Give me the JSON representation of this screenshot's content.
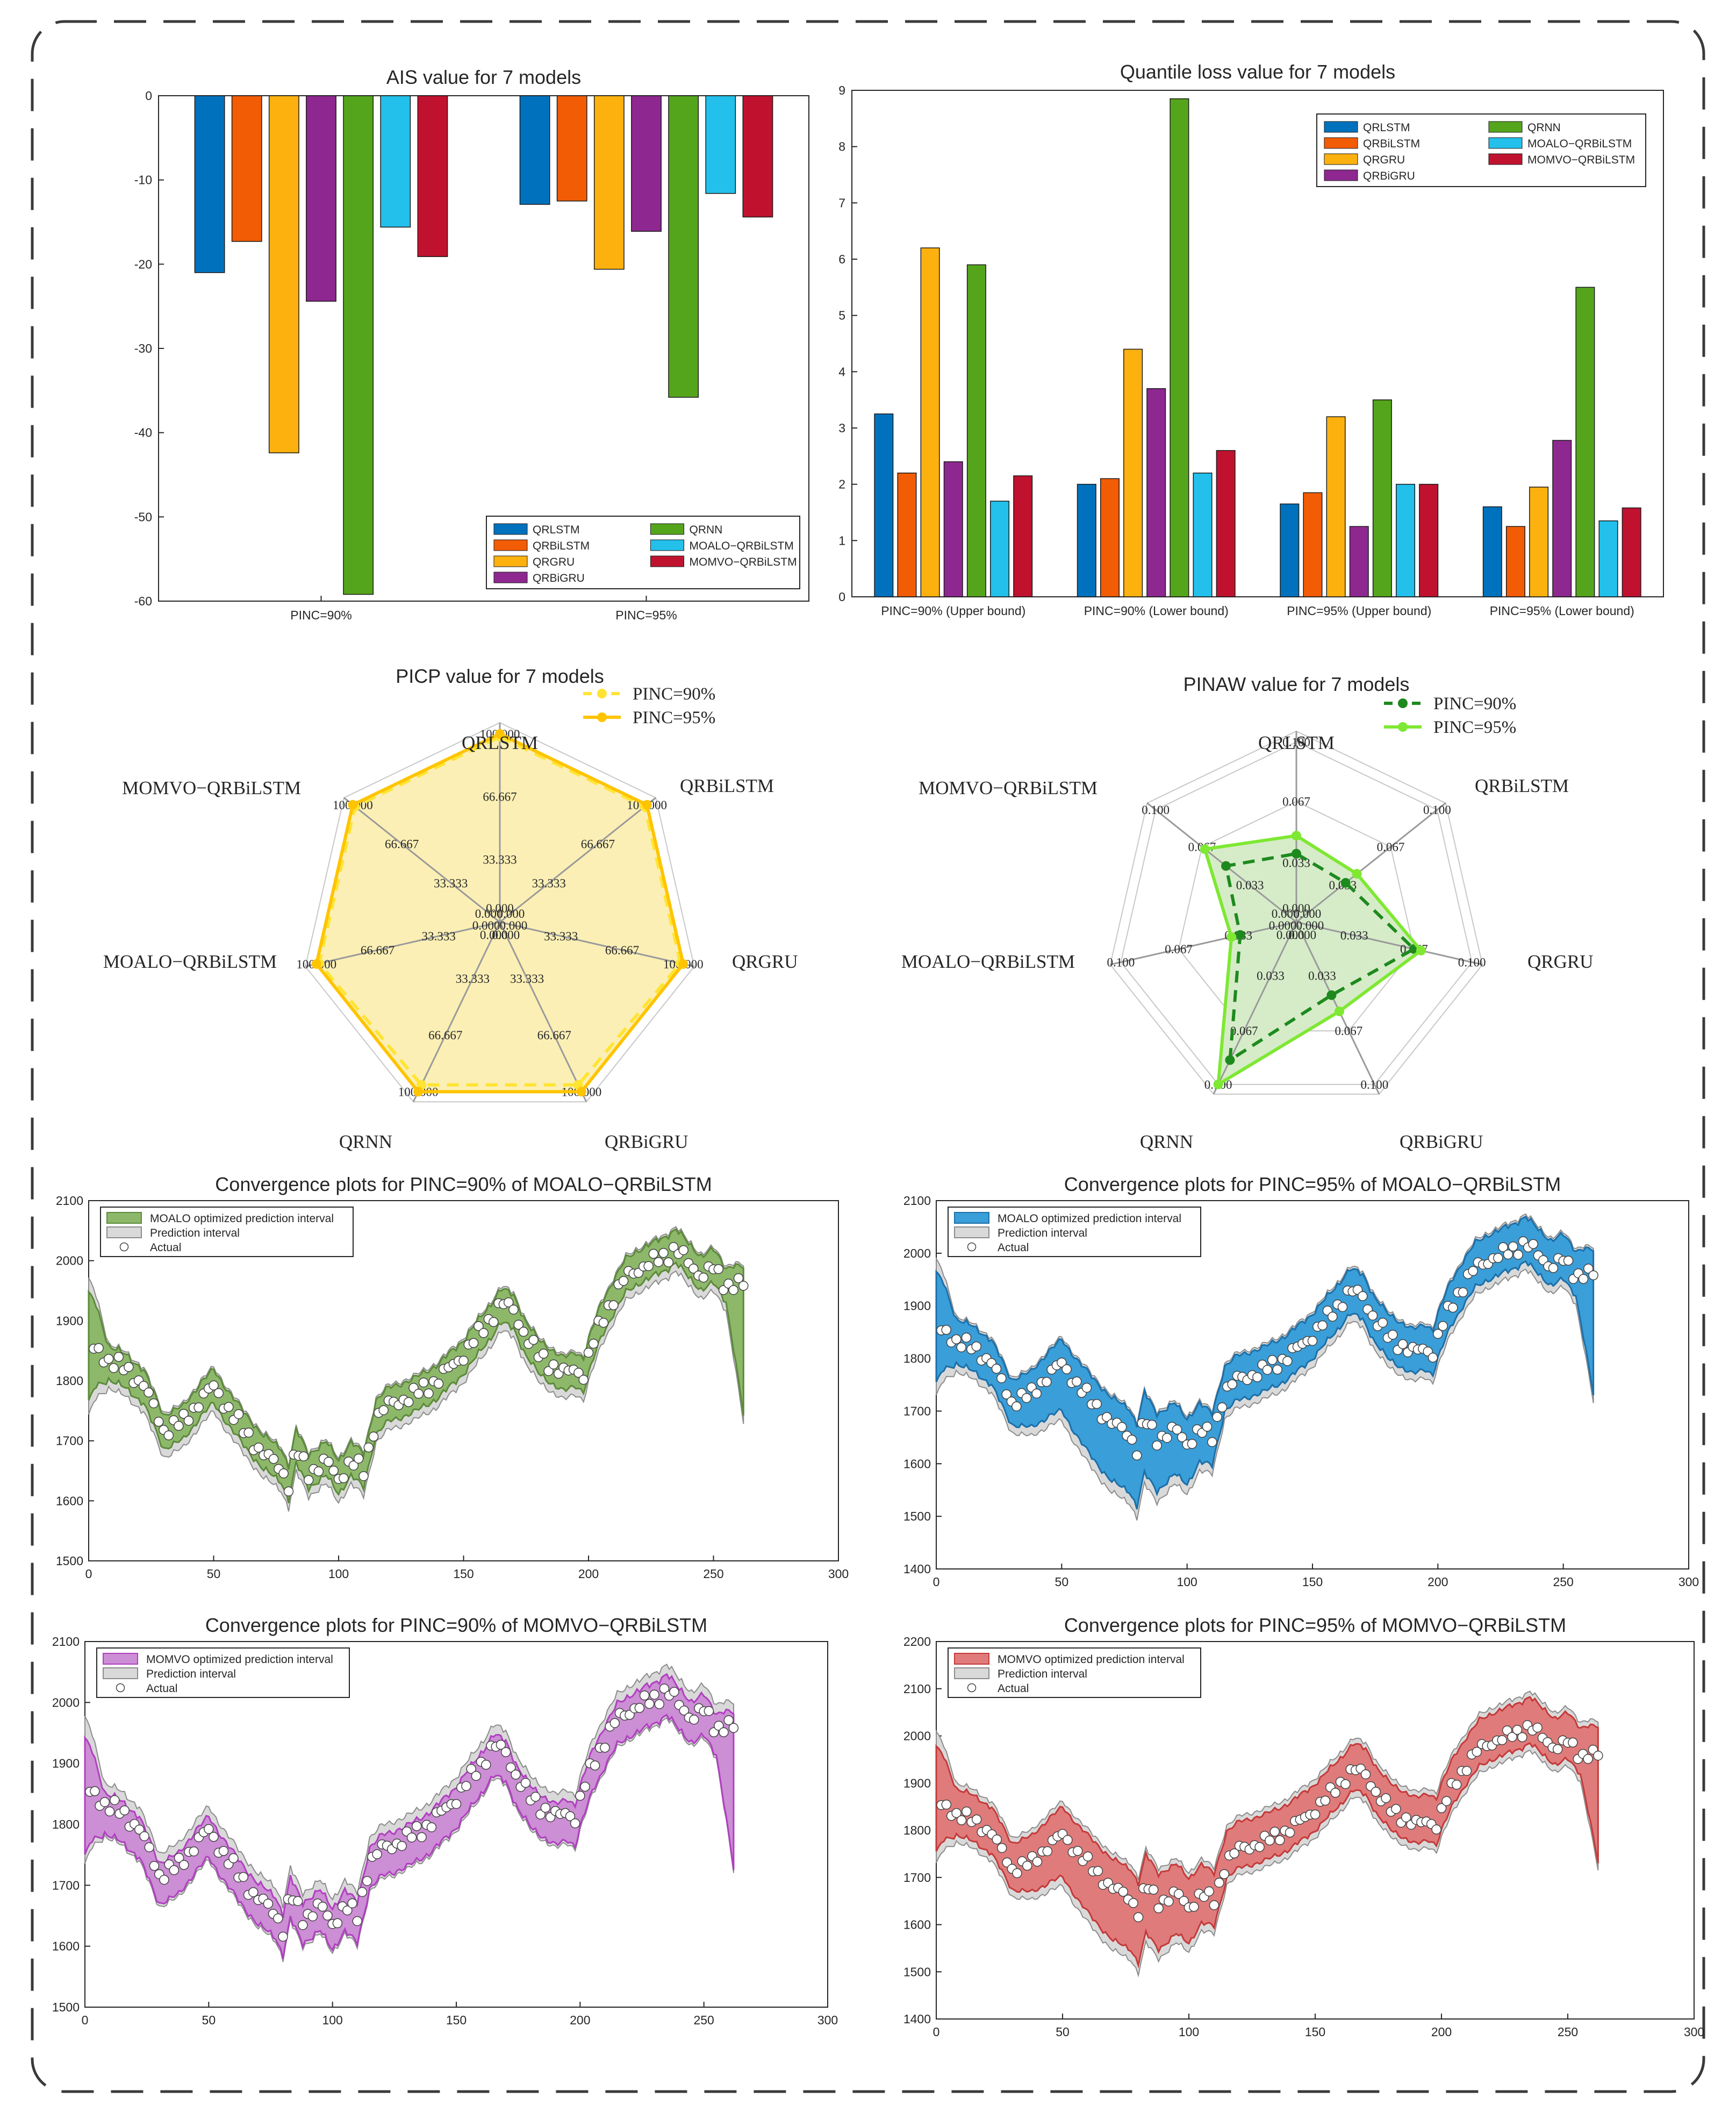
{
  "chart_data": [
    {
      "id": "ais",
      "type": "bar",
      "title": "AIS value for 7 models",
      "categories": [
        "PINC=90%",
        "PINC=95%"
      ],
      "ylim": [
        -60,
        0
      ],
      "yticks": [
        0,
        -10,
        -20,
        -30,
        -40,
        -50,
        -60
      ],
      "legend_position": "bottom-right",
      "series": [
        {
          "name": "QRLSTM",
          "color": "#0072BD",
          "values": [
            -21.0,
            -12.9
          ]
        },
        {
          "name": "QRBiLSTM",
          "color": "#F25C05",
          "values": [
            -17.3,
            -12.5
          ]
        },
        {
          "name": "QRGRU",
          "color": "#FDB10F",
          "values": [
            -42.4,
            -20.6
          ]
        },
        {
          "name": "QRBiGRU",
          "color": "#8E2890",
          "values": [
            -24.4,
            -16.1
          ]
        },
        {
          "name": "QRNN",
          "color": "#55A51C",
          "values": [
            -59.2,
            -35.8
          ]
        },
        {
          "name": "MOALO−QRBiLSTM",
          "color": "#22C0EA",
          "values": [
            -15.6,
            -11.6
          ]
        },
        {
          "name": "MOMVO−QRBiLSTM",
          "color": "#C0122F",
          "values": [
            -19.1,
            -14.4
          ]
        }
      ]
    },
    {
      "id": "ql",
      "type": "bar",
      "title": "Quantile loss value for 7 models",
      "categories": [
        "PINC=90% (Upper bound)",
        "PINC=90% (Lower bound)",
        "PINC=95% (Upper bound)",
        "PINC=95% (Lower bound)"
      ],
      "ylim": [
        0,
        9
      ],
      "yticks": [
        0,
        1,
        2,
        3,
        4,
        5,
        6,
        7,
        8,
        9
      ],
      "legend_position": "top-right",
      "series": [
        {
          "name": "QRLSTM",
          "color": "#0072BD",
          "values": [
            3.25,
            2.0,
            1.65,
            1.6
          ]
        },
        {
          "name": "QRBiLSTM",
          "color": "#F25C05",
          "values": [
            2.2,
            2.1,
            1.85,
            1.25
          ]
        },
        {
          "name": "QRGRU",
          "color": "#FDB10F",
          "values": [
            6.2,
            4.4,
            3.2,
            1.95
          ]
        },
        {
          "name": "QRBiGRU",
          "color": "#8E2890",
          "values": [
            2.4,
            3.7,
            1.25,
            2.78
          ]
        },
        {
          "name": "QRNN",
          "color": "#55A51C",
          "values": [
            5.9,
            8.85,
            3.5,
            5.5
          ]
        },
        {
          "name": "MOALO−QRBiLSTM",
          "color": "#22C0EA",
          "values": [
            1.7,
            2.2,
            2.0,
            1.35
          ]
        },
        {
          "name": "MOMVO−QRBiLSTM",
          "color": "#C0122F",
          "values": [
            2.15,
            2.6,
            2.0,
            1.58
          ]
        }
      ]
    },
    {
      "id": "picp",
      "type": "radar",
      "title": "PICP value for 7 models",
      "axes": [
        "QRLSTM",
        "QRBiLSTM",
        "QRGRU",
        "QRBiGRU",
        "QRNN",
        "MOALO−QRBiLSTM",
        "MOMVO−QRBiLSTM"
      ],
      "rmax": 100,
      "rings": [
        0,
        33.333,
        66.667,
        100
      ],
      "ring_labels": [
        "0.000",
        "33.333",
        "66.667",
        "100.000"
      ],
      "fill": "#FBEFB5",
      "series": [
        {
          "name": "PINC=90%",
          "color": "#FFE433",
          "dashed": true,
          "values": [
            98.5,
            98.5,
            98.5,
            96.0,
            96.0,
            98.5,
            98.5
          ]
        },
        {
          "name": "PINC=95%",
          "color": "#FFC400",
          "dashed": false,
          "values": [
            100,
            100,
            100,
            100,
            100,
            100,
            100
          ]
        }
      ]
    },
    {
      "id": "pinaw",
      "type": "radar",
      "title": "PINAW value for 7 models",
      "axes": [
        "QRLSTM",
        "QRBiLSTM",
        "QRGRU",
        "QRBiGRU",
        "QRNN",
        "MOALO−QRBiLSTM",
        "MOMVO−QRBiLSTM"
      ],
      "rmax": 0.1,
      "rings": [
        0,
        0.033,
        0.067,
        0.1
      ],
      "ring_labels": [
        "0.000",
        "0.033",
        "0.067",
        "0.100"
      ],
      "fill": "#D6ECC9",
      "series": [
        {
          "name": "PINC=90%",
          "color": "#1E8A1E",
          "dashed": true,
          "values": [
            0.038,
            0.035,
            0.067,
            0.045,
            0.085,
            0.032,
            0.05
          ]
        },
        {
          "name": "PINC=95%",
          "color": "#7EE832",
          "dashed": false,
          "values": [
            0.048,
            0.043,
            0.071,
            0.055,
            0.1,
            0.037,
            0.065
          ]
        }
      ]
    },
    {
      "id": "c1",
      "type": "area",
      "title": "Convergence plots for PINC=90% of MOALO−QRBiLSTM",
      "xlim": [
        0,
        300
      ],
      "ylim": [
        1500,
        2100
      ],
      "xticks": [
        0,
        50,
        100,
        150,
        200,
        250,
        300
      ],
      "yticks": [
        1500,
        1600,
        1700,
        1800,
        1900,
        2000,
        2100
      ],
      "legend": [
        "MOALO optimized prediction interval",
        "Prediction interval",
        "Actual"
      ],
      "color": "#8DB86A",
      "edge": "#5C8A3A",
      "wide": false,
      "inner_lo": 28,
      "inner_hi": 28,
      "outer_lo": 42,
      "outer_hi": 32
    },
    {
      "id": "c2",
      "type": "area",
      "title": "Convergence plots for PINC=95% of MOALO−QRBiLSTM",
      "xlim": [
        0,
        300
      ],
      "ylim": [
        1400,
        2100
      ],
      "xticks": [
        0,
        50,
        100,
        150,
        200,
        250,
        300
      ],
      "yticks": [
        1400,
        1500,
        1600,
        1700,
        1800,
        1900,
        2000,
        2100
      ],
      "legend": [
        "MOALO optimized prediction interval",
        "Prediction interval",
        "Actual"
      ],
      "color": "#3A9ED8",
      "edge": "#1C6FA8",
      "wide": true,
      "inner_lo": 40,
      "inner_hi": 45,
      "outer_lo": 55,
      "outer_hi": 50
    },
    {
      "id": "c3",
      "type": "area",
      "title": "Convergence plots for PINC=90% of MOMVO−QRBiLSTM",
      "xlim": [
        0,
        300
      ],
      "ylim": [
        1500,
        2100
      ],
      "xticks": [
        0,
        50,
        100,
        150,
        200,
        250,
        300
      ],
      "yticks": [
        1500,
        1600,
        1700,
        1800,
        1900,
        2000,
        2100
      ],
      "legend": [
        "MOMVO optimized prediction interval",
        "Prediction interval",
        "Actual"
      ],
      "color": "#CC8ED4",
      "edge": "#B040C0",
      "wide": false,
      "inner_lo": 45,
      "inner_hi": 22,
      "outer_lo": 50,
      "outer_hi": 38
    },
    {
      "id": "c4",
      "type": "area",
      "title": "Convergence plots for PINC=95% of MOMVO−QRBiLSTM",
      "xlim": [
        0,
        300
      ],
      "ylim": [
        1400,
        2200
      ],
      "xticks": [
        0,
        50,
        100,
        150,
        200,
        250,
        300
      ],
      "yticks": [
        1400,
        1500,
        1600,
        1700,
        1800,
        1900,
        2000,
        2100,
        2200
      ],
      "legend": [
        "MOMVO optimized prediction interval",
        "Prediction interval",
        "Actual"
      ],
      "color": "#E07B7B",
      "edge": "#C43A3A",
      "wide": true,
      "inner_lo": 40,
      "inner_hi": 58,
      "outer_lo": 55,
      "outer_hi": 70
    }
  ],
  "series_anchors": {
    "x": [
      0,
      3,
      8,
      15,
      22,
      30,
      38,
      45,
      50,
      55,
      62,
      70,
      77,
      80,
      83,
      88,
      95,
      100,
      105,
      110,
      115,
      120,
      130,
      140,
      150,
      160,
      165,
      170,
      175,
      180,
      185,
      190,
      195,
      198,
      200,
      205,
      210,
      215,
      220,
      225,
      230,
      235,
      240,
      245,
      250,
      255,
      258,
      262
    ],
    "y": [
      1840,
      1850,
      1830,
      1815,
      1790,
      1715,
      1730,
      1770,
      1790,
      1760,
      1720,
      1680,
      1660,
      1630,
      1690,
      1650,
      1670,
      1640,
      1670,
      1650,
      1740,
      1760,
      1775,
      1800,
      1840,
      1895,
      1925,
      1915,
      1870,
      1840,
      1825,
      1810,
      1820,
      1810,
      1840,
      1900,
      1940,
      1975,
      1990,
      2000,
      2010,
      2025,
      2000,
      1980,
      1990,
      1960,
      1965,
      1960
    ]
  }
}
